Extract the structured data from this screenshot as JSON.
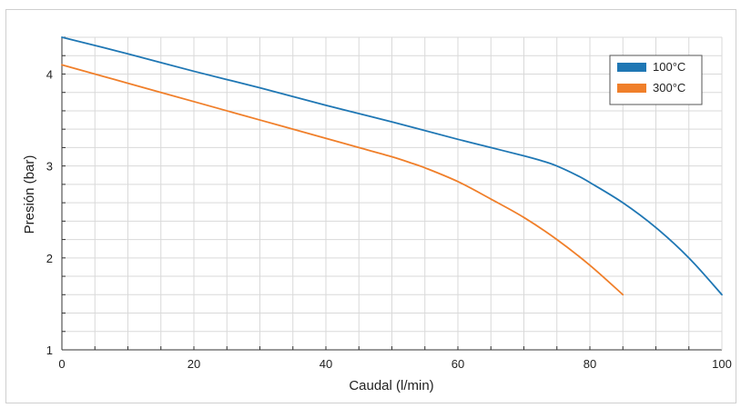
{
  "chart_data": {
    "type": "line",
    "title": "",
    "xlabel": "Caudal (l/min)",
    "ylabel": "Presión (bar)",
    "xlim": [
      0,
      100
    ],
    "ylim": [
      1,
      4.4
    ],
    "x_ticks": [
      0,
      20,
      40,
      60,
      80,
      100
    ],
    "y_ticks": [
      1,
      2,
      3,
      4
    ],
    "grid": true,
    "legend_position": "top-right",
    "series": [
      {
        "name": "100°C",
        "color": "#1f77b4",
        "x": [
          0,
          10,
          20,
          30,
          40,
          50,
          60,
          65,
          70,
          73,
          75,
          78,
          80,
          85,
          90,
          95,
          100
        ],
        "y": [
          4.4,
          4.22,
          4.03,
          3.85,
          3.66,
          3.48,
          3.29,
          3.2,
          3.11,
          3.05,
          3.0,
          2.9,
          2.82,
          2.6,
          2.33,
          2.0,
          1.6
        ]
      },
      {
        "name": "300°C",
        "color": "#f07f2a",
        "x": [
          0,
          10,
          20,
          30,
          40,
          45,
          50,
          53,
          55,
          60,
          65,
          70,
          75,
          80,
          85
        ],
        "y": [
          4.1,
          3.9,
          3.7,
          3.5,
          3.3,
          3.2,
          3.1,
          3.03,
          2.98,
          2.83,
          2.64,
          2.44,
          2.2,
          1.92,
          1.6
        ]
      }
    ]
  }
}
